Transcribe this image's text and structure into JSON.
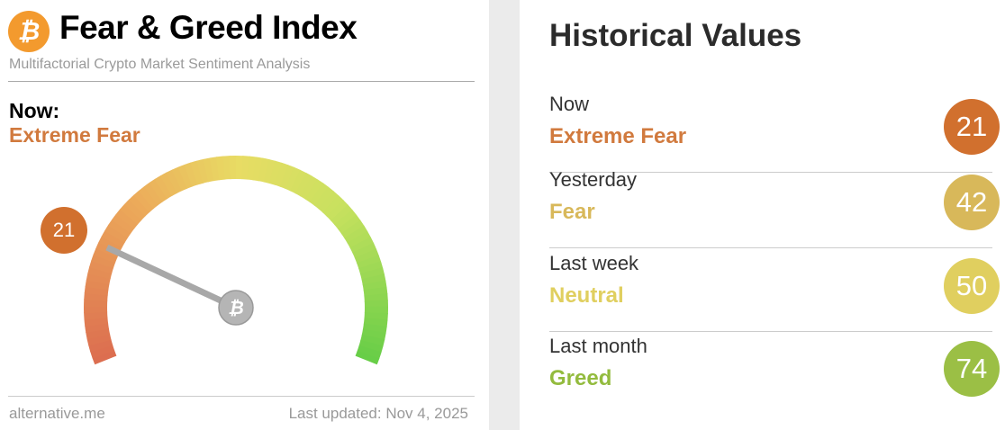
{
  "header": {
    "title": "Fear & Greed Index",
    "subtitle": "Multifactorial Crypto Market Sentiment Analysis",
    "logo_icon": "bitcoin-icon",
    "logo_glyph": "₿"
  },
  "now": {
    "label": "Now:",
    "classification": "Extreme Fear",
    "value": 21,
    "value_text": "21",
    "color": "#d1702e"
  },
  "gauge": {
    "min": 0,
    "max": 100,
    "value": 21,
    "hub_icon": "bitcoin-icon"
  },
  "footer": {
    "site": "alternative.me",
    "last_updated": "Last updated: Nov 4, 2025"
  },
  "historical": {
    "title": "Historical Values",
    "rows": [
      {
        "label": "Now",
        "classification": "Extreme Fear",
        "value": "21",
        "color": "#d1702e",
        "text_color": "#d17a3e"
      },
      {
        "label": "Yesterday",
        "classification": "Fear",
        "value": "42",
        "color": "#d8b85a",
        "text_color": "#d8b85a"
      },
      {
        "label": "Last week",
        "classification": "Neutral",
        "value": "50",
        "color": "#e0cf5f",
        "text_color": "#e0cf5f"
      },
      {
        "label": "Last month",
        "classification": "Greed",
        "value": "74",
        "color": "#9bbf45",
        "text_color": "#93bb3e"
      }
    ]
  }
}
